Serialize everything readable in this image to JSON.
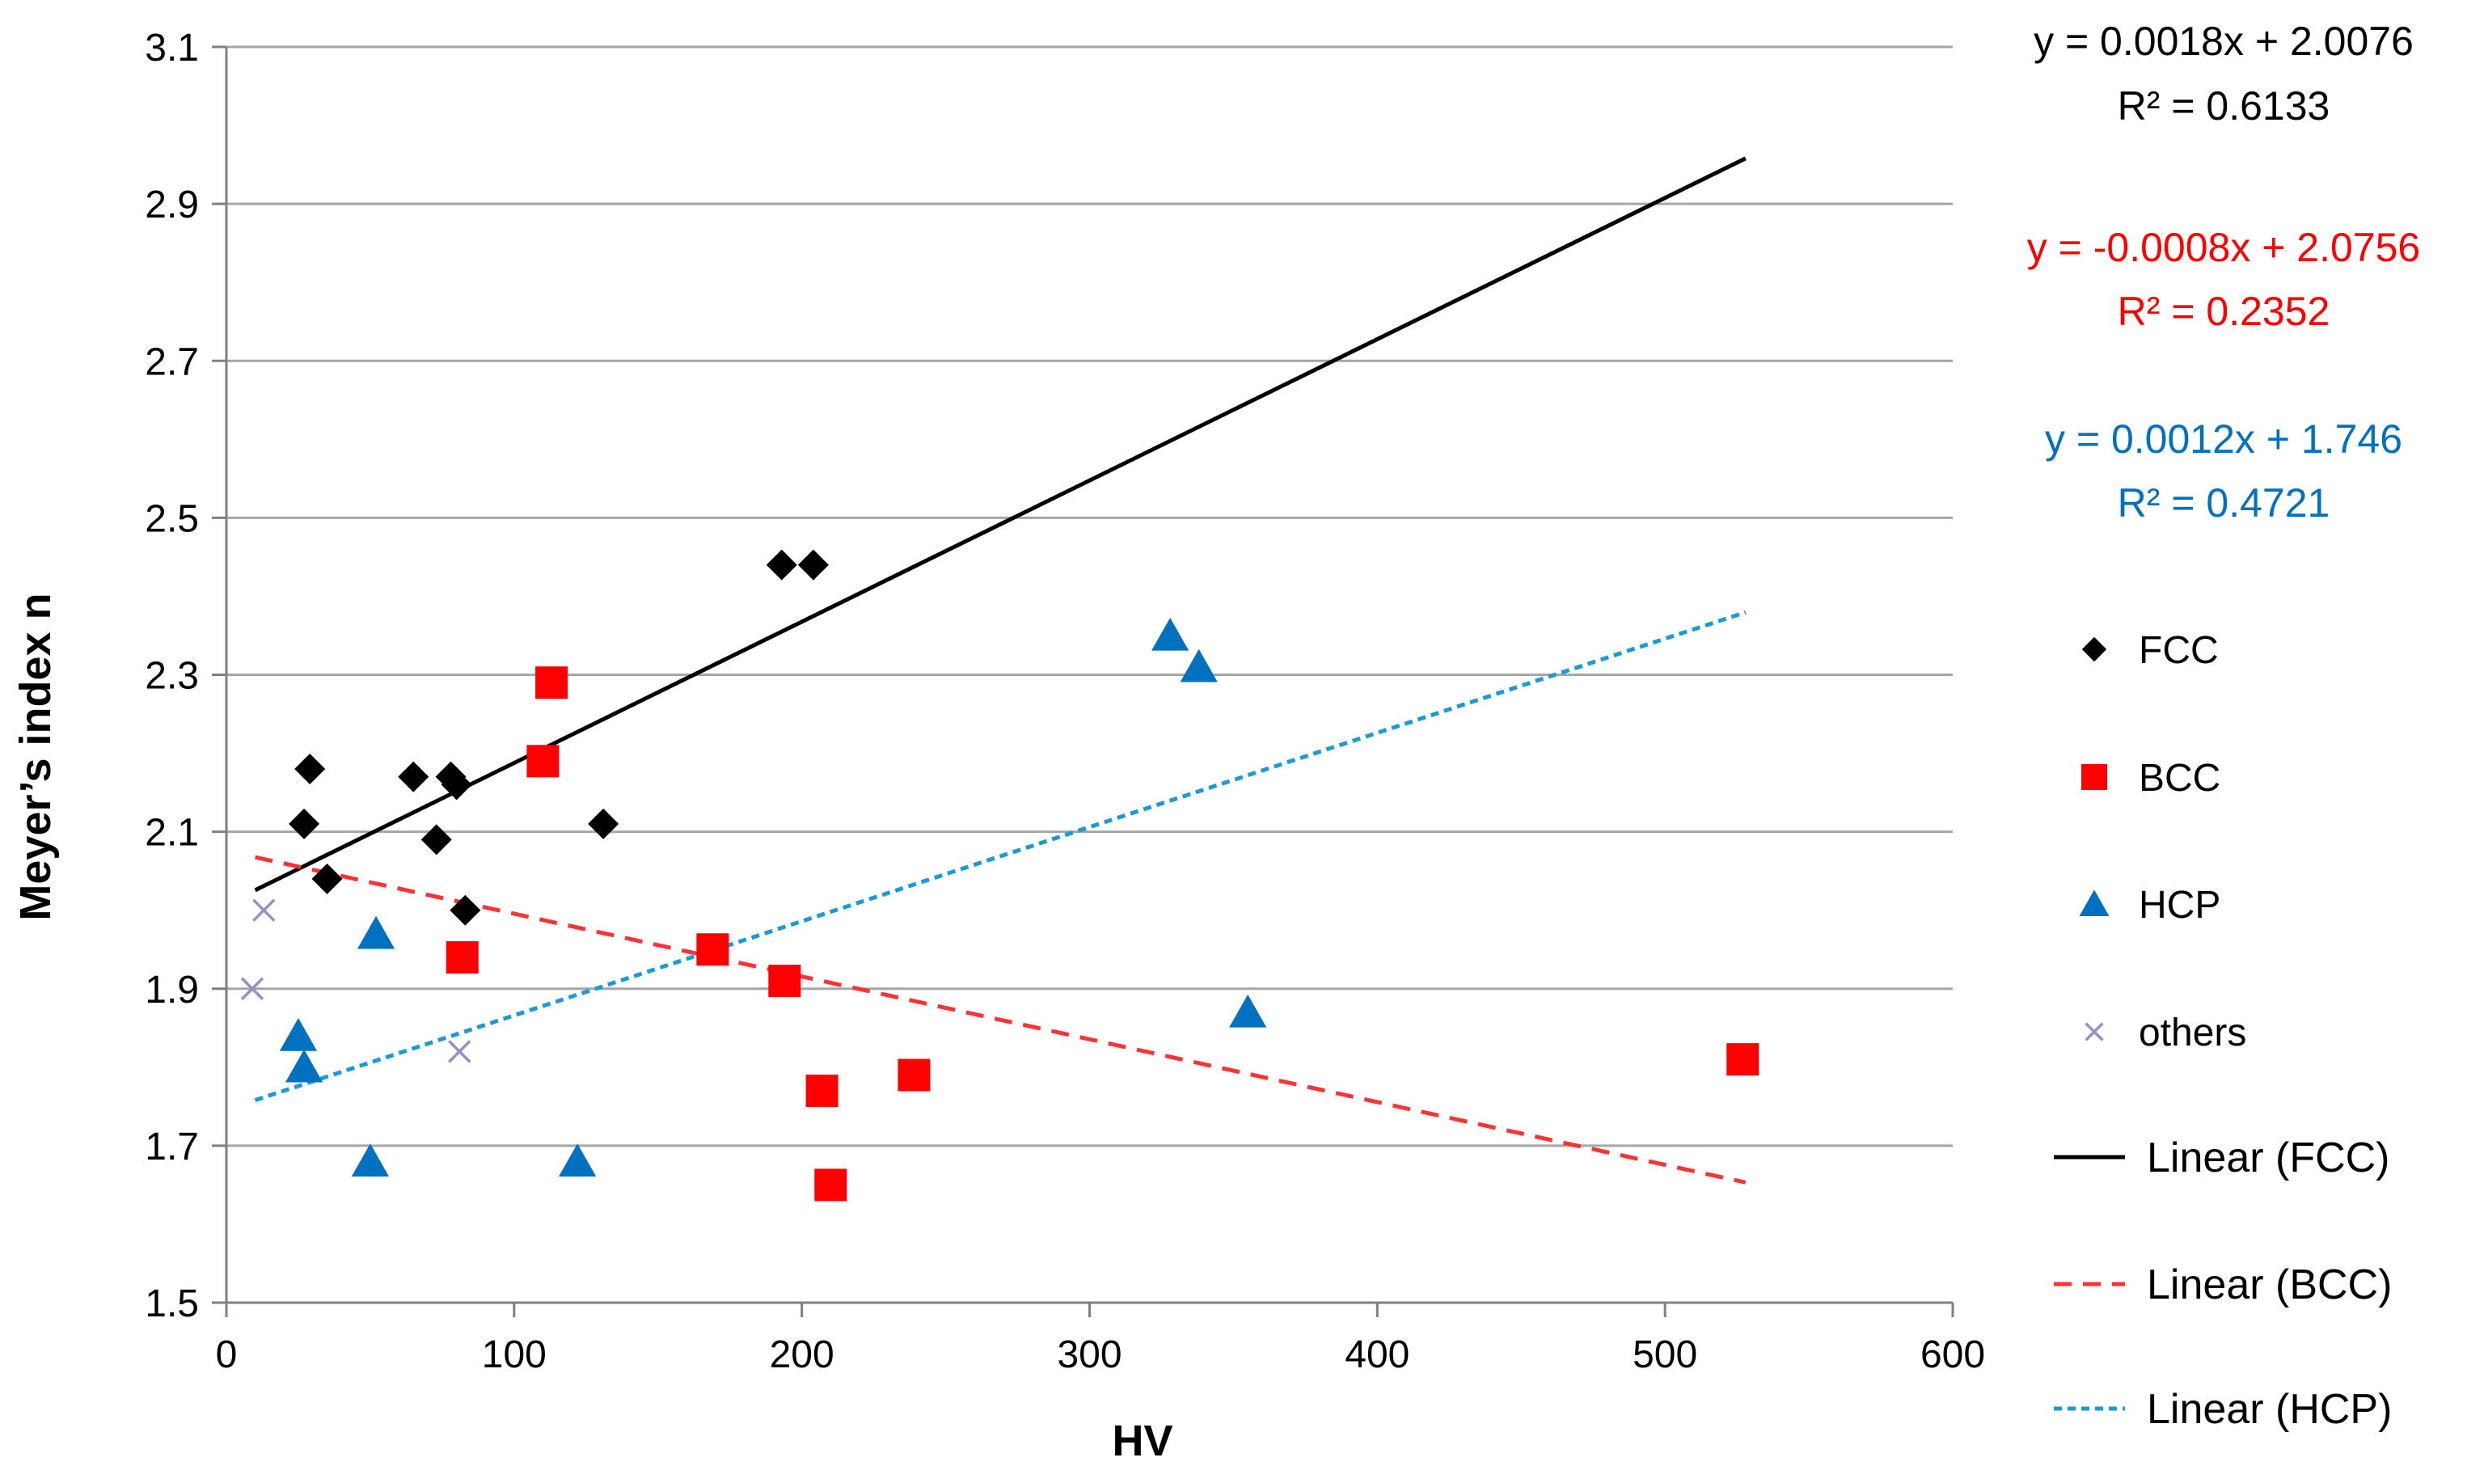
{
  "chart_data": {
    "type": "scatter",
    "xlabel": "HV",
    "ylabel": "Meyer’s index n",
    "xlim": [
      0,
      600
    ],
    "ylim": [
      1.5,
      3.1
    ],
    "xticks": [
      "0",
      "100",
      "200",
      "300",
      "400",
      "500",
      "600"
    ],
    "yticks": [
      "1.5",
      "1.7",
      "1.9",
      "2.1",
      "2.3",
      "2.5",
      "2.7",
      "2.9",
      "3.1"
    ],
    "grid": "horizontal",
    "legend_position": "right",
    "series": [
      {
        "name": "FCC",
        "marker": "diamond",
        "color": "#000000",
        "points": [
          [
            29,
            2.18
          ],
          [
            27,
            2.11
          ],
          [
            35,
            2.04
          ],
          [
            65,
            2.17
          ],
          [
            78,
            2.17
          ],
          [
            80,
            2.16
          ],
          [
            73,
            2.09
          ],
          [
            83,
            2.0
          ],
          [
            131,
            2.11
          ],
          [
            193,
            2.44
          ],
          [
            204,
            2.44
          ]
        ]
      },
      {
        "name": "BCC",
        "marker": "square",
        "color": "#ff0000",
        "points": [
          [
            113,
            2.29
          ],
          [
            110,
            2.19
          ],
          [
            82,
            1.94
          ],
          [
            169,
            1.95
          ],
          [
            194,
            1.91
          ],
          [
            207,
            1.77
          ],
          [
            210,
            1.65
          ],
          [
            239,
            1.79
          ],
          [
            527,
            1.81
          ]
        ]
      },
      {
        "name": "HCP",
        "marker": "triangle",
        "color": "#0070c0",
        "points": [
          [
            52,
            1.97
          ],
          [
            25,
            1.84
          ],
          [
            27,
            1.8
          ],
          [
            50,
            1.68
          ],
          [
            122,
            1.68
          ],
          [
            328,
            2.35
          ],
          [
            338,
            2.31
          ],
          [
            355,
            1.87
          ]
        ]
      },
      {
        "name": "others",
        "marker": "x",
        "color": "#9b8ec4",
        "points": [
          [
            13,
            2.0
          ],
          [
            9,
            1.9
          ],
          [
            81,
            1.82
          ]
        ]
      }
    ],
    "trendlines": [
      {
        "name": "Linear (FCC)",
        "color": "#000000",
        "dash": "solid",
        "slope": 0.0018,
        "intercept": 2.0076,
        "x_range": [
          10,
          528
        ],
        "equation": "y = 0.0018x + 2.0076",
        "r2": "R² = 0.6133"
      },
      {
        "name": "Linear (BCC)",
        "color": "#ff3333",
        "dash": "dashed",
        "slope": -0.0008,
        "intercept": 2.0756,
        "x_range": [
          10,
          528
        ],
        "equation": "y = -0.0008x + 2.0756",
        "r2": "R² = 0.2352"
      },
      {
        "name": "Linear (HCP)",
        "color": "#1a9ad6",
        "dash": "dotted",
        "slope": 0.0012,
        "intercept": 1.746,
        "x_range": [
          10,
          528
        ],
        "equation": "y = 0.0012x + 1.746",
        "r2": "R² = 0.4721"
      }
    ],
    "equation_colors": [
      "#000000",
      "#ff0000",
      "#0070c0"
    ]
  }
}
